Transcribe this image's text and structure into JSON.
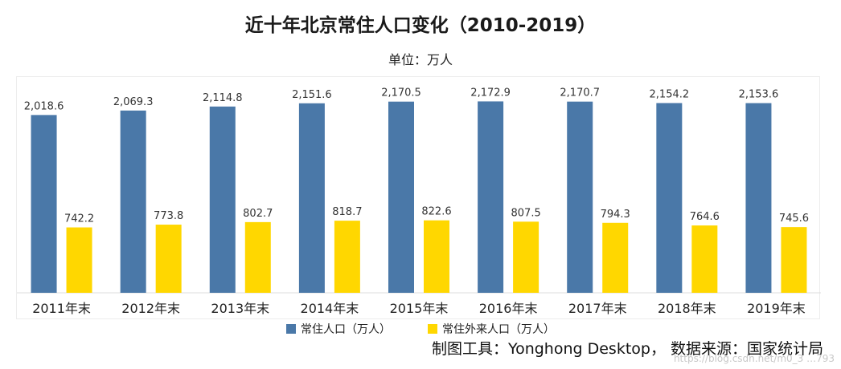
{
  "title": "近十年北京常住人口变化（2010-2019）",
  "subtitle": "单位：万人",
  "footer": "制图工具：Yonghong Desktop，  数据来源：国家统计局",
  "watermark": "https://blog.csdn.net/m0_3 …793",
  "colors": {
    "series1": "#4a78a8",
    "series2": "#ffd700"
  },
  "chart_data": {
    "type": "bar",
    "categories": [
      "2011年末",
      "2012年末",
      "2013年末",
      "2014年末",
      "2015年末",
      "2016年末",
      "2017年末",
      "2018年末",
      "2019年末"
    ],
    "series": [
      {
        "name": "常住人口（万人）",
        "values": [
          2018.6,
          2069.3,
          2114.8,
          2151.6,
          2170.5,
          2172.9,
          2170.7,
          2154.2,
          2153.6
        ],
        "labels": [
          "2,018.6",
          "2,069.3",
          "2,114.8",
          "2,151.6",
          "2,170.5",
          "2,172.9",
          "2,170.7",
          "2,154.2",
          "2,153.6"
        ]
      },
      {
        "name": "常住外来人口（万人）",
        "values": [
          742.2,
          773.8,
          802.7,
          818.7,
          822.6,
          807.5,
          794.3,
          764.6,
          745.6
        ],
        "labels": [
          "742.2",
          "773.8",
          "802.7",
          "818.7",
          "822.6",
          "807.5",
          "794.3",
          "764.6",
          "745.6"
        ]
      }
    ],
    "ylim": [
      0,
      2450
    ],
    "grid": false,
    "legend": "bottom"
  }
}
